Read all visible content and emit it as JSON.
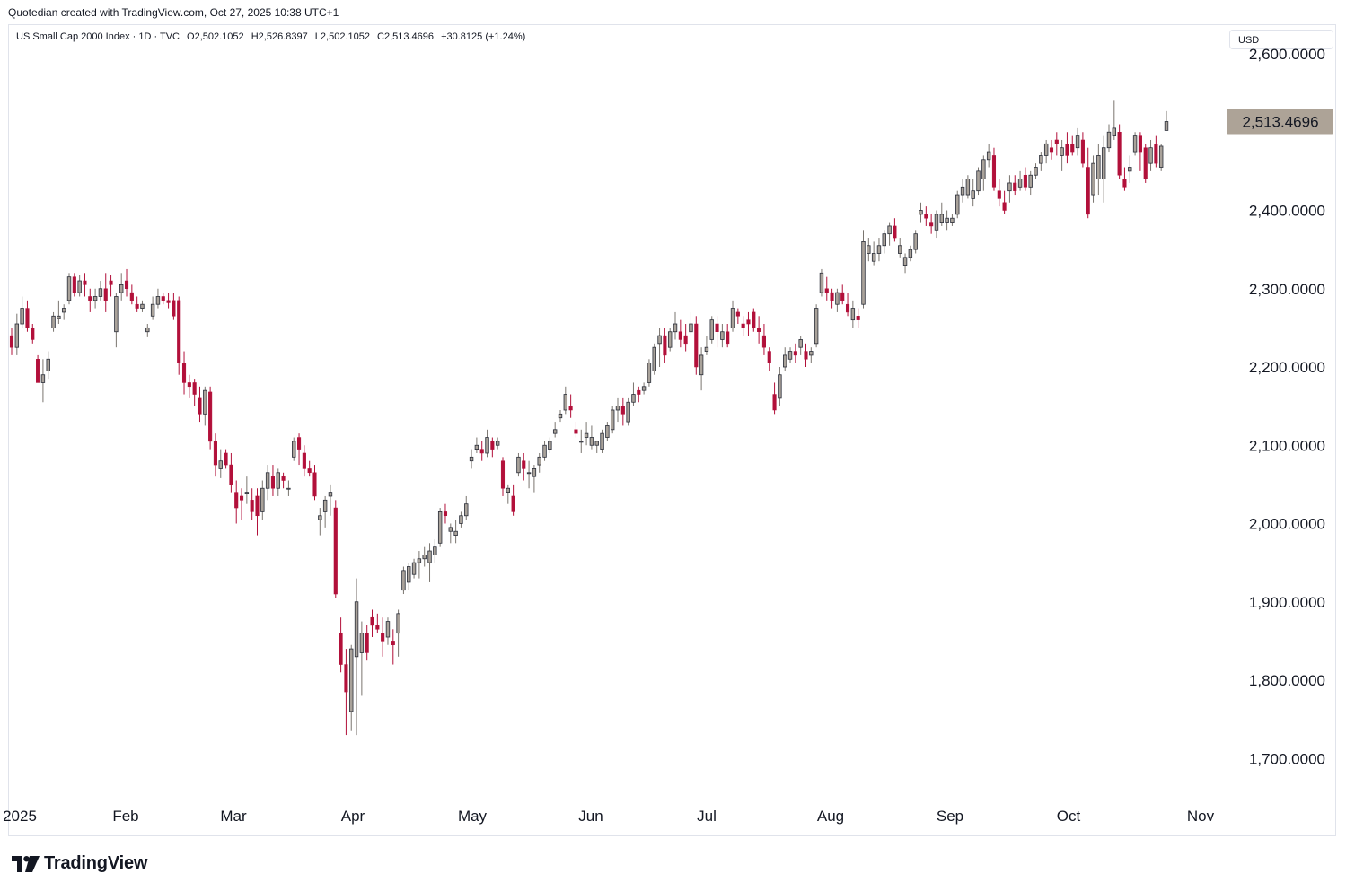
{
  "credit": "Quotedian created with TradingView.com, Oct 27, 2025 10:38 UTC+1",
  "legend": {
    "title": "US Small Cap 2000 Index · 1D · TVC",
    "open": "O2,502.1052",
    "high": "H2,526.8397",
    "low": "L2,502.1052",
    "close": "C2,513.4696",
    "change": "+30.8125 (+1.24%)"
  },
  "currency": "USD",
  "brand": "TradingView",
  "colors": {
    "up": "#a9a29a",
    "down": "#b2103a",
    "wick_up": "#7a756f",
    "wick_down": "#b2103a",
    "last_price_bg": "#ada397"
  },
  "chart_data": {
    "type": "candlestick",
    "title": "US Small Cap 2000 Index",
    "last_price": 2513.4696,
    "last_price_label": "2,513.4696",
    "y_ticks": [
      {
        "value": 2600,
        "label": "2,600.0000"
      },
      {
        "value": 2400,
        "label": "2,400.0000"
      },
      {
        "value": 2300,
        "label": "2,300.0000"
      },
      {
        "value": 2200,
        "label": "2,200.0000"
      },
      {
        "value": 2100,
        "label": "2,100.0000"
      },
      {
        "value": 2000,
        "label": "2,000.0000"
      },
      {
        "value": 1900,
        "label": "1,900.0000"
      },
      {
        "value": 1800,
        "label": "1,800.0000"
      },
      {
        "value": 1700,
        "label": "1,700.0000"
      }
    ],
    "x_ticks": [
      "2025",
      "Feb",
      "Mar",
      "Apr",
      "May",
      "Jun",
      "Jul",
      "Aug",
      "Sep",
      "Oct",
      "Nov"
    ],
    "ylim": [
      1655,
      2612
    ],
    "candles": [
      [
        2240,
        2250,
        2215,
        2225
      ],
      [
        2225,
        2268,
        2215,
        2255
      ],
      [
        2255,
        2290,
        2250,
        2275
      ],
      [
        2275,
        2285,
        2245,
        2250
      ],
      [
        2250,
        2255,
        2230,
        2235
      ],
      [
        2210,
        2215,
        2185,
        2180
      ],
      [
        2180,
        2210,
        2155,
        2190
      ],
      [
        2195,
        2220,
        2185,
        2210
      ],
      [
        2250,
        2270,
        2245,
        2265
      ],
      [
        2262,
        2285,
        2255,
        2265
      ],
      [
        2270,
        2280,
        2260,
        2275
      ],
      [
        2285,
        2320,
        2280,
        2315
      ],
      [
        2315,
        2320,
        2290,
        2295
      ],
      [
        2295,
        2318,
        2290,
        2310
      ],
      [
        2310,
        2320,
        2290,
        2305
      ],
      [
        2290,
        2300,
        2270,
        2285
      ],
      [
        2285,
        2300,
        2275,
        2290
      ],
      [
        2290,
        2310,
        2285,
        2300
      ],
      [
        2300,
        2320,
        2270,
        2285
      ],
      [
        2310,
        2318,
        2290,
        2305
      ],
      [
        2245,
        2295,
        2225,
        2290
      ],
      [
        2295,
        2320,
        2285,
        2305
      ],
      [
        2310,
        2325,
        2290,
        2300
      ],
      [
        2295,
        2305,
        2280,
        2285
      ],
      [
        2280,
        2290,
        2270,
        2275
      ],
      [
        2275,
        2285,
        2270,
        2280
      ],
      [
        2245,
        2255,
        2238,
        2250
      ],
      [
        2265,
        2290,
        2260,
        2280
      ],
      [
        2280,
        2300,
        2275,
        2290
      ],
      [
        2290,
        2295,
        2280,
        2285
      ],
      [
        2285,
        2295,
        2275,
        2282
      ],
      [
        2285,
        2295,
        2260,
        2265
      ],
      [
        2285,
        2290,
        2190,
        2205
      ],
      [
        2205,
        2220,
        2165,
        2180
      ],
      [
        2180,
        2190,
        2160,
        2175
      ],
      [
        2180,
        2185,
        2150,
        2165
      ],
      [
        2160,
        2175,
        2130,
        2140
      ],
      [
        2140,
        2175,
        2125,
        2170
      ],
      [
        2168,
        2175,
        2095,
        2105
      ],
      [
        2105,
        2115,
        2060,
        2075
      ],
      [
        2070,
        2095,
        2058,
        2080
      ],
      [
        2090,
        2095,
        2070,
        2075
      ],
      [
        2075,
        2090,
        2040,
        2050
      ],
      [
        2040,
        2055,
        2000,
        2020
      ],
      [
        2035,
        2045,
        2005,
        2030
      ],
      [
        2040,
        2060,
        2025,
        2040
      ],
      [
        2030,
        2045,
        2005,
        2015
      ],
      [
        2035,
        2045,
        1985,
        2010
      ],
      [
        2015,
        2055,
        2005,
        2045
      ],
      [
        2045,
        2075,
        2030,
        2065
      ],
      [
        2060,
        2075,
        2035,
        2045
      ],
      [
        2045,
        2070,
        2035,
        2065
      ],
      [
        2060,
        2065,
        2045,
        2055
      ],
      [
        2045,
        2055,
        2035,
        2045
      ],
      [
        2085,
        2110,
        2080,
        2105
      ],
      [
        2110,
        2115,
        2075,
        2095
      ],
      [
        2090,
        2100,
        2060,
        2070
      ],
      [
        2070,
        2080,
        2060,
        2065
      ],
      [
        2065,
        2075,
        2030,
        2035
      ],
      [
        2005,
        2020,
        1985,
        2010
      ],
      [
        2015,
        2035,
        1995,
        2030
      ],
      [
        2035,
        2050,
        2010,
        2040
      ],
      [
        2020,
        2030,
        1905,
        1910
      ],
      [
        1860,
        1880,
        1810,
        1820
      ],
      [
        1820,
        1840,
        1730,
        1785
      ],
      [
        1760,
        1845,
        1735,
        1840
      ],
      [
        1830,
        1930,
        1730,
        1900
      ],
      [
        1835,
        1875,
        1780,
        1860
      ],
      [
        1860,
        1870,
        1825,
        1835
      ],
      [
        1880,
        1890,
        1855,
        1870
      ],
      [
        1870,
        1885,
        1860,
        1865
      ],
      [
        1860,
        1880,
        1830,
        1850
      ],
      [
        1855,
        1880,
        1845,
        1875
      ],
      [
        1850,
        1865,
        1820,
        1845
      ],
      [
        1860,
        1890,
        1830,
        1885
      ],
      [
        1915,
        1945,
        1910,
        1940
      ],
      [
        1925,
        1950,
        1915,
        1945
      ],
      [
        1935,
        1955,
        1930,
        1950
      ],
      [
        1950,
        1965,
        1930,
        1955
      ],
      [
        1955,
        1970,
        1945,
        1960
      ],
      [
        1950,
        1975,
        1925,
        1965
      ],
      [
        1960,
        1980,
        1950,
        1970
      ],
      [
        1975,
        2020,
        1970,
        2015
      ],
      [
        2015,
        2025,
        2000,
        2010
      ],
      [
        1990,
        2000,
        1975,
        1995
      ],
      [
        1985,
        2005,
        1975,
        1990
      ],
      [
        2000,
        2015,
        1995,
        2010
      ],
      [
        2010,
        2035,
        2005,
        2025
      ],
      [
        2080,
        2095,
        2070,
        2085
      ],
      [
        2095,
        2110,
        2090,
        2100
      ],
      [
        2095,
        2105,
        2080,
        2090
      ],
      [
        2090,
        2120,
        2085,
        2110
      ],
      [
        2105,
        2110,
        2085,
        2095
      ],
      [
        2100,
        2110,
        2095,
        2105
      ],
      [
        2080,
        2085,
        2035,
        2045
      ],
      [
        2040,
        2050,
        2025,
        2045
      ],
      [
        2035,
        2050,
        2010,
        2015
      ],
      [
        2065,
        2090,
        2060,
        2085
      ],
      [
        2080,
        2090,
        2055,
        2070
      ],
      [
        2065,
        2080,
        2045,
        2065
      ],
      [
        2060,
        2075,
        2040,
        2070
      ],
      [
        2075,
        2090,
        2065,
        2085
      ],
      [
        2085,
        2105,
        2080,
        2100
      ],
      [
        2095,
        2110,
        2090,
        2105
      ],
      [
        2115,
        2130,
        2110,
        2120
      ],
      [
        2135,
        2145,
        2130,
        2140
      ],
      [
        2145,
        2175,
        2140,
        2165
      ],
      [
        2150,
        2165,
        2135,
        2145
      ],
      [
        2120,
        2130,
        2110,
        2115
      ],
      [
        2105,
        2120,
        2090,
        2105
      ],
      [
        2110,
        2130,
        2100,
        2115
      ],
      [
        2100,
        2125,
        2095,
        2110
      ],
      [
        2100,
        2105,
        2090,
        2105
      ],
      [
        2095,
        2120,
        2090,
        2115
      ],
      [
        2110,
        2130,
        2105,
        2125
      ],
      [
        2120,
        2150,
        2115,
        2145
      ],
      [
        2145,
        2160,
        2130,
        2150
      ],
      [
        2150,
        2160,
        2125,
        2140
      ],
      [
        2130,
        2160,
        2125,
        2155
      ],
      [
        2155,
        2180,
        2150,
        2165
      ],
      [
        2170,
        2175,
        2155,
        2165
      ],
      [
        2170,
        2180,
        2165,
        2175
      ],
      [
        2180,
        2210,
        2175,
        2205
      ],
      [
        2195,
        2230,
        2190,
        2225
      ],
      [
        2230,
        2250,
        2200,
        2240
      ],
      [
        2240,
        2250,
        2205,
        2215
      ],
      [
        2225,
        2250,
        2220,
        2245
      ],
      [
        2245,
        2270,
        2235,
        2255
      ],
      [
        2245,
        2260,
        2225,
        2235
      ],
      [
        2240,
        2255,
        2220,
        2230
      ],
      [
        2245,
        2270,
        2240,
        2255
      ],
      [
        2255,
        2265,
        2190,
        2200
      ],
      [
        2190,
        2225,
        2170,
        2215
      ],
      [
        2220,
        2240,
        2215,
        2225
      ],
      [
        2235,
        2265,
        2230,
        2260
      ],
      [
        2255,
        2265,
        2225,
        2245
      ],
      [
        2235,
        2255,
        2225,
        2245
      ],
      [
        2245,
        2255,
        2225,
        2230
      ],
      [
        2250,
        2285,
        2245,
        2275
      ],
      [
        2270,
        2275,
        2255,
        2265
      ],
      [
        2255,
        2265,
        2240,
        2250
      ],
      [
        2260,
        2270,
        2240,
        2255
      ],
      [
        2270,
        2275,
        2245,
        2250
      ],
      [
        2250,
        2265,
        2230,
        2245
      ],
      [
        2240,
        2255,
        2215,
        2225
      ],
      [
        2220,
        2225,
        2195,
        2205
      ],
      [
        2165,
        2180,
        2140,
        2145
      ],
      [
        2160,
        2200,
        2150,
        2190
      ],
      [
        2200,
        2225,
        2195,
        2215
      ],
      [
        2210,
        2225,
        2205,
        2220
      ],
      [
        2220,
        2230,
        2205,
        2215
      ],
      [
        2225,
        2240,
        2215,
        2235
      ],
      [
        2220,
        2230,
        2200,
        2210
      ],
      [
        2215,
        2225,
        2205,
        2220
      ],
      [
        2230,
        2280,
        2225,
        2275
      ],
      [
        2295,
        2325,
        2290,
        2320
      ],
      [
        2300,
        2315,
        2285,
        2295
      ],
      [
        2295,
        2300,
        2275,
        2285
      ],
      [
        2280,
        2300,
        2270,
        2295
      ],
      [
        2295,
        2305,
        2280,
        2285
      ],
      [
        2280,
        2295,
        2265,
        2270
      ],
      [
        2260,
        2285,
        2250,
        2275
      ],
      [
        2265,
        2275,
        2250,
        2260
      ],
      [
        2280,
        2375,
        2275,
        2360
      ],
      [
        2345,
        2365,
        2335,
        2355
      ],
      [
        2335,
        2360,
        2330,
        2345
      ],
      [
        2345,
        2365,
        2335,
        2355
      ],
      [
        2355,
        2375,
        2345,
        2370
      ],
      [
        2370,
        2385,
        2355,
        2380
      ],
      [
        2380,
        2390,
        2360,
        2365
      ],
      [
        2345,
        2365,
        2340,
        2355
      ],
      [
        2330,
        2345,
        2320,
        2340
      ],
      [
        2340,
        2355,
        2335,
        2350
      ],
      [
        2350,
        2375,
        2345,
        2370
      ],
      [
        2395,
        2410,
        2385,
        2400
      ],
      [
        2395,
        2405,
        2380,
        2390
      ],
      [
        2385,
        2395,
        2370,
        2380
      ],
      [
        2375,
        2400,
        2365,
        2395
      ],
      [
        2385,
        2410,
        2380,
        2395
      ],
      [
        2385,
        2400,
        2375,
        2390
      ],
      [
        2385,
        2395,
        2380,
        2390
      ],
      [
        2395,
        2425,
        2390,
        2420
      ],
      [
        2420,
        2440,
        2410,
        2430
      ],
      [
        2420,
        2445,
        2415,
        2440
      ],
      [
        2415,
        2440,
        2405,
        2425
      ],
      [
        2425,
        2455,
        2420,
        2450
      ],
      [
        2440,
        2470,
        2425,
        2465
      ],
      [
        2465,
        2485,
        2455,
        2475
      ],
      [
        2470,
        2480,
        2425,
        2430
      ],
      [
        2425,
        2440,
        2405,
        2415
      ],
      [
        2410,
        2425,
        2395,
        2400
      ],
      [
        2425,
        2445,
        2410,
        2435
      ],
      [
        2435,
        2445,
        2420,
        2425
      ],
      [
        2430,
        2450,
        2425,
        2440
      ],
      [
        2445,
        2455,
        2425,
        2430
      ],
      [
        2430,
        2450,
        2420,
        2445
      ],
      [
        2445,
        2460,
        2440,
        2455
      ],
      [
        2460,
        2475,
        2450,
        2470
      ],
      [
        2470,
        2490,
        2460,
        2485
      ],
      [
        2480,
        2490,
        2465,
        2475
      ],
      [
        2490,
        2500,
        2470,
        2485
      ],
      [
        2470,
        2490,
        2450,
        2480
      ],
      [
        2485,
        2500,
        2460,
        2470
      ],
      [
        2485,
        2495,
        2470,
        2475
      ],
      [
        2480,
        2505,
        2470,
        2495
      ],
      [
        2490,
        2500,
        2455,
        2460
      ],
      [
        2455,
        2480,
        2390,
        2395
      ],
      [
        2420,
        2470,
        2410,
        2460
      ],
      [
        2440,
        2485,
        2420,
        2470
      ],
      [
        2440,
        2495,
        2410,
        2480
      ],
      [
        2480,
        2510,
        2475,
        2500
      ],
      [
        2495,
        2540,
        2490,
        2505
      ],
      [
        2500,
        2510,
        2440,
        2445
      ],
      [
        2440,
        2455,
        2425,
        2430
      ],
      [
        2450,
        2470,
        2435,
        2455
      ],
      [
        2475,
        2500,
        2470,
        2495
      ],
      [
        2495,
        2500,
        2450,
        2475
      ],
      [
        2480,
        2485,
        2435,
        2440
      ],
      [
        2460,
        2490,
        2450,
        2480
      ],
      [
        2485,
        2495,
        2455,
        2460
      ],
      [
        2455,
        2485,
        2450,
        2482
      ],
      [
        2502.1052,
        2526.8397,
        2502.1052,
        2513.4696
      ]
    ]
  }
}
